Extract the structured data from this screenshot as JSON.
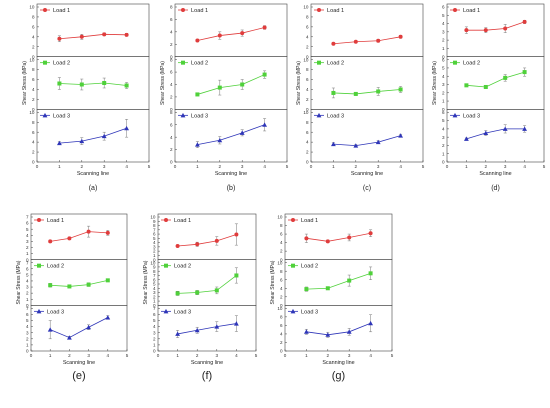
{
  "chart_data": [
    {
      "type": "line",
      "label": "(a)",
      "xlabel": "Scanning line",
      "ylabel": "Shear Stress (MPa)",
      "xlim": [
        0,
        5
      ],
      "xticks": [
        0,
        1,
        2,
        3,
        4,
        5
      ],
      "x": [
        1,
        2,
        3,
        4
      ],
      "panels": [
        {
          "name": "Load 1",
          "ylim": [
            0,
            10
          ],
          "yticks": [
            0,
            2,
            4,
            6,
            8,
            10
          ],
          "values": [
            3.6,
            4.0,
            4.5,
            4.4
          ],
          "errors": [
            0.6,
            0.5,
            0.3,
            0.3
          ]
        },
        {
          "name": "Load 2",
          "ylim": [
            0,
            10
          ],
          "yticks": [
            0,
            2,
            4,
            6,
            8,
            10
          ],
          "values": [
            5.2,
            5.0,
            5.3,
            4.8
          ],
          "errors": [
            1.2,
            1.1,
            1.0,
            0.6
          ]
        },
        {
          "name": "Load 3",
          "ylim": [
            0,
            10
          ],
          "yticks": [
            0,
            2,
            4,
            6,
            8,
            10
          ],
          "values": [
            3.8,
            4.2,
            5.2,
            6.8
          ],
          "errors": [
            0.3,
            0.7,
            0.8,
            1.8
          ]
        }
      ]
    },
    {
      "type": "line",
      "label": "(b)",
      "xlabel": "Scanning line",
      "ylabel": "Shear Stress (MPa)",
      "xlim": [
        0,
        5
      ],
      "xticks": [
        0,
        1,
        2,
        3,
        4,
        5
      ],
      "x": [
        1,
        2,
        3,
        4
      ],
      "panels": [
        {
          "name": "Load 1",
          "ylim": [
            0,
            8
          ],
          "yticks": [
            0,
            2,
            4,
            6,
            8
          ],
          "values": [
            2.6,
            3.4,
            3.8,
            4.7
          ],
          "errors": [
            0.2,
            0.6,
            0.5,
            0.3
          ]
        },
        {
          "name": "Load 2",
          "ylim": [
            0,
            8
          ],
          "yticks": [
            0,
            2,
            4,
            6,
            8
          ],
          "values": [
            2.4,
            3.5,
            4.0,
            5.6
          ],
          "errors": [
            0.2,
            1.2,
            0.8,
            0.6
          ]
        },
        {
          "name": "Load 3",
          "ylim": [
            0,
            8
          ],
          "yticks": [
            0,
            2,
            4,
            6,
            8
          ],
          "values": [
            2.8,
            3.5,
            4.7,
            6.0
          ],
          "errors": [
            0.5,
            0.6,
            0.5,
            1.0
          ]
        }
      ]
    },
    {
      "type": "line",
      "label": "(c)",
      "xlabel": "Scanning line",
      "ylabel": "Shear Stress (MPa)",
      "xlim": [
        0,
        5
      ],
      "xticks": [
        0,
        1,
        2,
        3,
        4,
        5
      ],
      "x": [
        1,
        2,
        3,
        4
      ],
      "panels": [
        {
          "name": "Load 1",
          "ylim": [
            0,
            10
          ],
          "yticks": [
            0,
            2,
            4,
            6,
            8,
            10
          ],
          "values": [
            2.6,
            3.0,
            3.2,
            4.0
          ],
          "errors": [
            0.2,
            0.2,
            0.3,
            0.3
          ]
        },
        {
          "name": "Load 2",
          "ylim": [
            0,
            10
          ],
          "yticks": [
            0,
            2,
            4,
            6,
            8,
            10
          ],
          "values": [
            3.3,
            3.1,
            3.6,
            4.0
          ],
          "errors": [
            1.0,
            0.3,
            0.8,
            0.6
          ]
        },
        {
          "name": "Load 3",
          "ylim": [
            0,
            10
          ],
          "yticks": [
            0,
            2,
            4,
            6,
            8,
            10
          ],
          "values": [
            3.6,
            3.3,
            4.0,
            5.3
          ],
          "errors": [
            0.3,
            0.2,
            0.3,
            0.3
          ]
        }
      ]
    },
    {
      "type": "line",
      "label": "(d)",
      "xlabel": "Scanning line",
      "ylabel": "Shear Stress (MPa)",
      "xlim": [
        0,
        5
      ],
      "xticks": [
        0,
        1,
        2,
        3,
        4,
        5
      ],
      "x": [
        1,
        2,
        3,
        4
      ],
      "panels": [
        {
          "name": "Load 1",
          "ylim": [
            0,
            6
          ],
          "yticks": [
            0,
            1,
            2,
            3,
            4,
            5,
            6
          ],
          "values": [
            3.2,
            3.2,
            3.4,
            4.2
          ],
          "errors": [
            0.4,
            0.3,
            0.5,
            0.2
          ]
        },
        {
          "name": "Load 2",
          "ylim": [
            0,
            6
          ],
          "yticks": [
            0,
            1,
            2,
            3,
            4,
            5,
            6
          ],
          "values": [
            2.9,
            2.7,
            3.8,
            4.5
          ],
          "errors": [
            0.1,
            0.2,
            0.4,
            0.5
          ]
        },
        {
          "name": "Load 3",
          "ylim": [
            0,
            6
          ],
          "yticks": [
            0,
            1,
            2,
            3,
            4,
            5,
            6
          ],
          "values": [
            2.8,
            3.5,
            4.0,
            4.0
          ],
          "errors": [
            0.1,
            0.3,
            0.5,
            0.4
          ]
        }
      ]
    },
    {
      "type": "line",
      "label": "(e)",
      "xlabel": "Scanning line",
      "ylabel": "Shear Stress (MPa)",
      "xlim": [
        0,
        5
      ],
      "xticks": [
        0,
        1,
        2,
        3,
        4,
        5
      ],
      "x": [
        1,
        2,
        3,
        4
      ],
      "panels": [
        {
          "name": "Load 1",
          "ylim": [
            0,
            7
          ],
          "yticks": [
            0,
            1,
            2,
            3,
            4,
            5,
            6,
            7
          ],
          "values": [
            3.0,
            3.5,
            4.6,
            4.4
          ],
          "errors": [
            0.2,
            0.2,
            0.9,
            0.4
          ]
        },
        {
          "name": "Load 2",
          "ylim": [
            0,
            7
          ],
          "yticks": [
            0,
            1,
            2,
            3,
            4,
            5,
            6,
            7
          ],
          "values": [
            3.3,
            3.1,
            3.4,
            4.1
          ],
          "errors": [
            0.3,
            0.2,
            0.3,
            0.2
          ]
        },
        {
          "name": "Load 3",
          "ylim": [
            0,
            7
          ],
          "yticks": [
            0,
            1,
            2,
            3,
            4,
            5,
            6,
            7
          ],
          "values": [
            3.5,
            2.2,
            3.9,
            5.5
          ],
          "errors": [
            1.5,
            0.2,
            0.4,
            0.3
          ]
        }
      ]
    },
    {
      "type": "line",
      "label": "(f)",
      "xlabel": "Scanning line",
      "ylabel": "Shear Stress (MPa)",
      "xlim": [
        0,
        5
      ],
      "xticks": [
        0,
        1,
        2,
        3,
        4,
        5
      ],
      "x": [
        1,
        2,
        3,
        4
      ],
      "panels": [
        {
          "name": "Load 1",
          "ylim": [
            0,
            10
          ],
          "yticks": [
            0,
            1,
            2,
            3,
            4,
            5,
            6,
            7,
            8,
            9,
            10
          ],
          "values": [
            3.2,
            3.6,
            4.4,
            5.9
          ],
          "errors": [
            0.2,
            0.5,
            1.0,
            2.5
          ]
        },
        {
          "name": "Load 2",
          "ylim": [
            0,
            10
          ],
          "yticks": [
            0,
            1,
            2,
            3,
            4,
            5,
            6,
            7,
            8,
            9,
            10
          ],
          "values": [
            2.8,
            3.0,
            3.5,
            7.0
          ],
          "errors": [
            0.5,
            0.5,
            0.8,
            1.8
          ]
        },
        {
          "name": "Load 3",
          "ylim": [
            0,
            7
          ],
          "yticks": [
            0,
            1,
            2,
            3,
            4,
            5,
            6,
            7
          ],
          "values": [
            2.8,
            3.4,
            4.0,
            4.5
          ],
          "errors": [
            0.6,
            0.5,
            0.8,
            1.3
          ]
        }
      ]
    },
    {
      "type": "line",
      "label": "(g)",
      "xlabel": "Scanning line",
      "ylabel": "Shear Stress (MPa)",
      "xlim": [
        0,
        5
      ],
      "xticks": [
        0,
        1,
        2,
        3,
        4,
        5
      ],
      "x": [
        1,
        2,
        3,
        4
      ],
      "panels": [
        {
          "name": "Load 1",
          "ylim": [
            0,
            10
          ],
          "yticks": [
            0,
            2,
            4,
            6,
            8,
            10
          ],
          "values": [
            5.0,
            4.3,
            5.2,
            6.2
          ],
          "errors": [
            1.0,
            0.3,
            0.8,
            0.8
          ]
        },
        {
          "name": "Load 2",
          "ylim": [
            0,
            10
          ],
          "yticks": [
            0,
            2,
            4,
            6,
            8,
            10
          ],
          "values": [
            3.8,
            4.0,
            5.8,
            7.5
          ],
          "errors": [
            0.5,
            0.3,
            1.3,
            1.5
          ]
        },
        {
          "name": "Load 3",
          "ylim": [
            0,
            10
          ],
          "yticks": [
            0,
            2,
            4,
            6,
            8,
            10
          ],
          "values": [
            4.5,
            3.8,
            4.5,
            6.5
          ],
          "errors": [
            0.6,
            0.6,
            0.8,
            2.0
          ]
        }
      ]
    }
  ],
  "series_colors": [
    "#e03c3c",
    "#4fd13a",
    "#2e35b8"
  ],
  "series_markers": [
    "circle",
    "square",
    "triangle"
  ]
}
